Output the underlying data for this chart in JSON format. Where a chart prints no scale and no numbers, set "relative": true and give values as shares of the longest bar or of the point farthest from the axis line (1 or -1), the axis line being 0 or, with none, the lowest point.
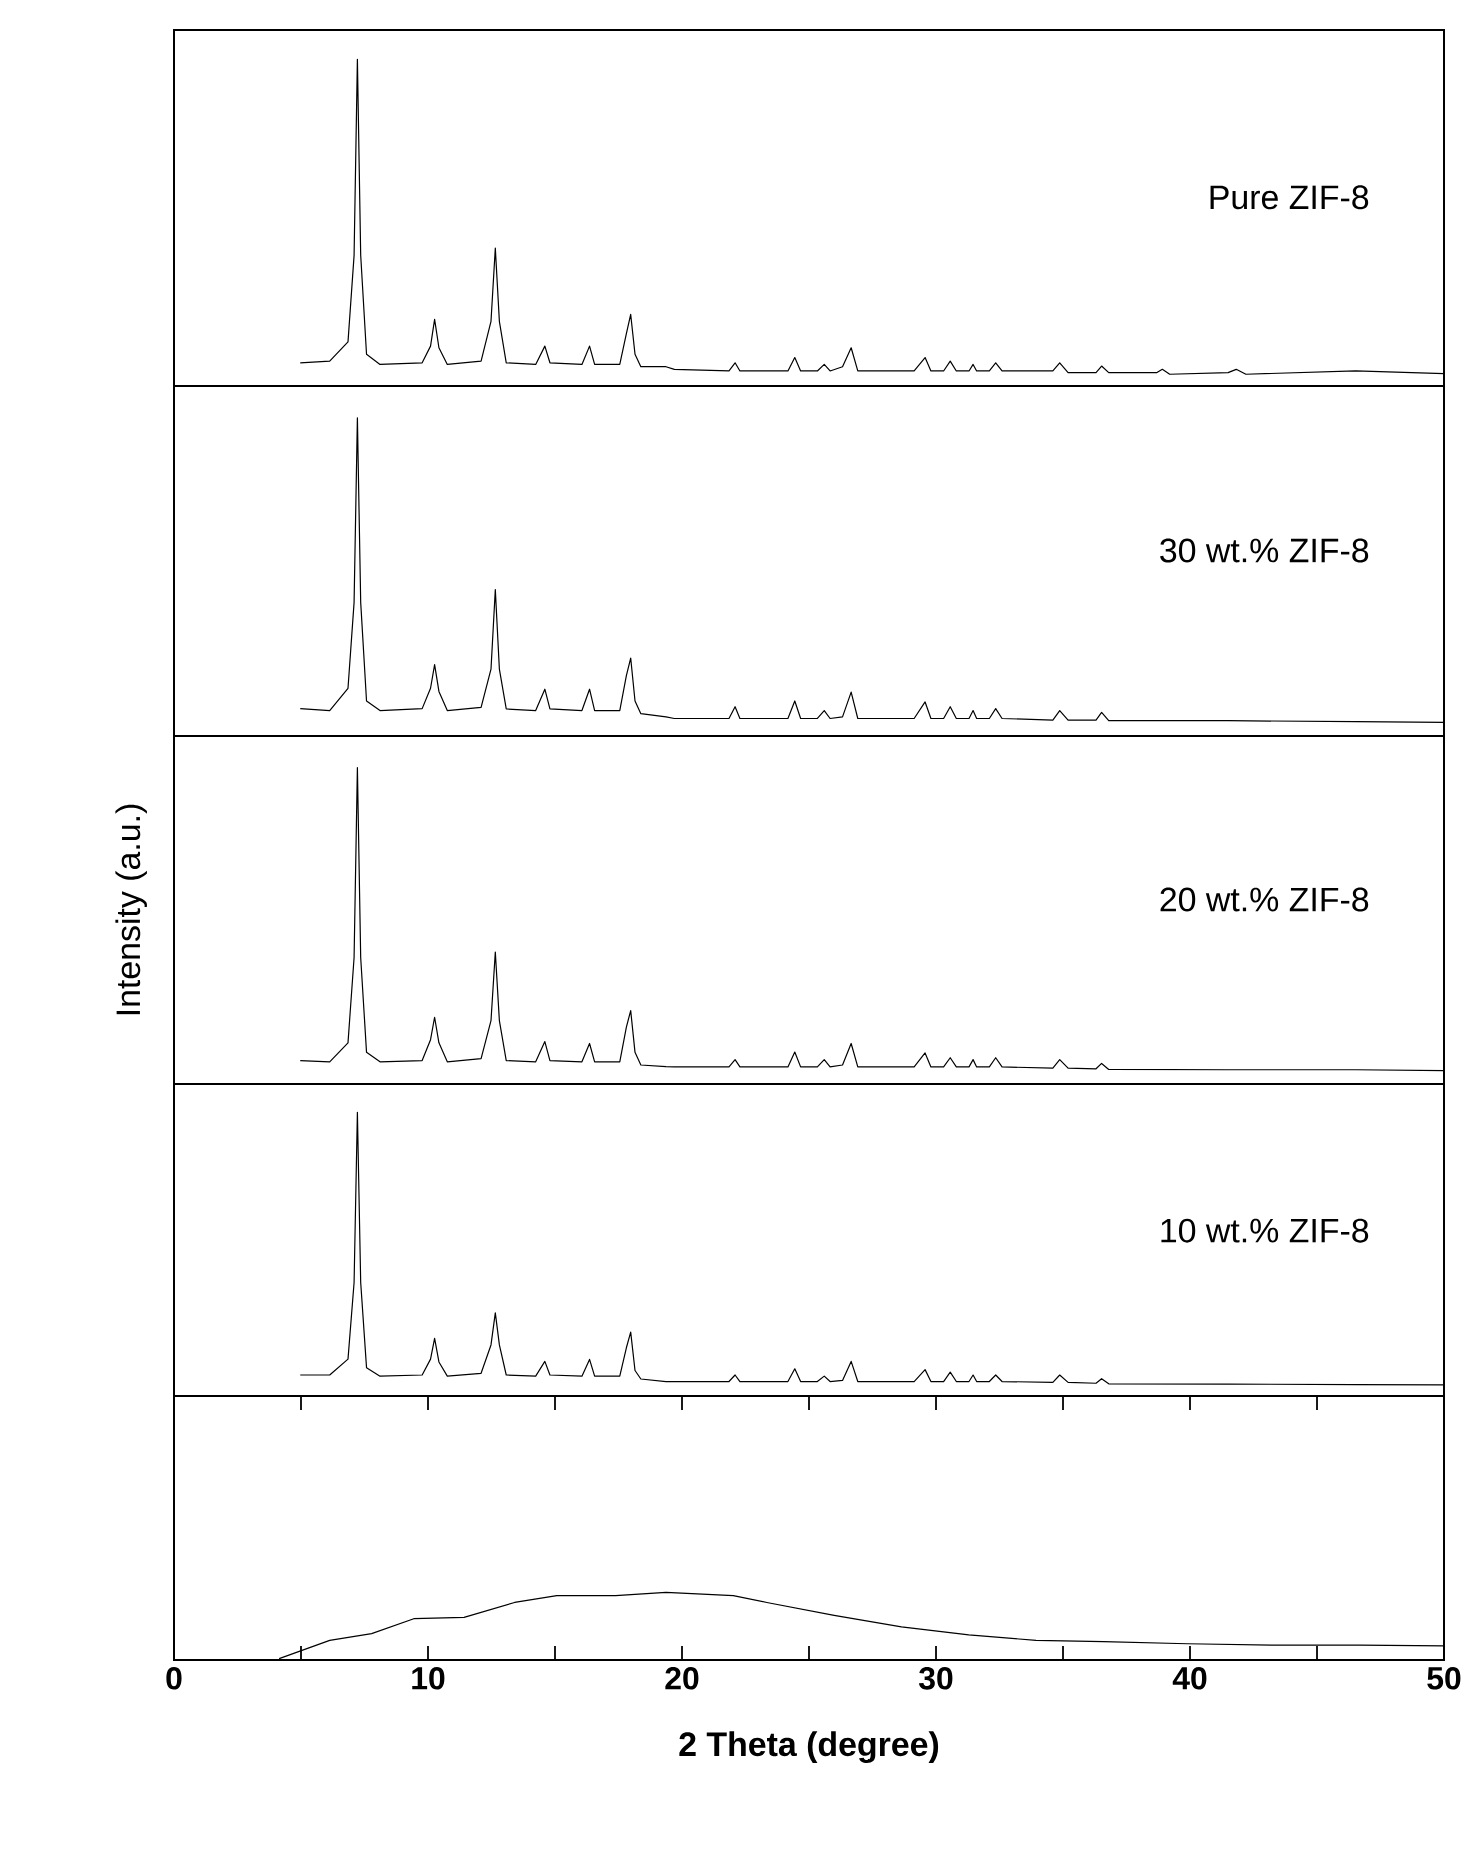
{
  "chart_data": [
    {
      "type": "line",
      "relative": true,
      "xlim": [
        0,
        50
      ],
      "tick_labels": false,
      "series": [
        {
          "name": "Pure ZIF-8",
          "color": "#000000",
          "x": [
            4.97,
            6.13,
            6.85,
            7.09,
            7.22,
            7.35,
            7.58,
            8.11,
            9.77,
            10.1,
            10.26,
            10.43,
            10.76,
            12.09,
            12.48,
            12.65,
            12.81,
            13.08,
            14.24,
            14.6,
            14.8,
            16.06,
            16.36,
            16.56,
            17.55,
            17.81,
            17.98,
            18.15,
            18.38,
            19.37,
            19.7,
            21.85,
            22.09,
            22.28,
            24.17,
            24.44,
            24.67,
            25.33,
            25.6,
            25.83,
            26.32,
            26.66,
            26.92,
            29.14,
            29.57,
            29.8,
            30.3,
            30.56,
            30.8,
            31.3,
            31.46,
            31.6,
            32.1,
            32.35,
            32.6,
            34.6,
            34.87,
            35.2,
            36.3,
            36.52,
            36.8,
            38.7,
            38.91,
            39.2,
            41.5,
            41.82,
            42.2,
            46.52,
            50
          ],
          "values": [
            0.071,
            0.076,
            0.135,
            0.4,
            1.0,
            0.4,
            0.097,
            0.066,
            0.071,
            0.122,
            0.204,
            0.117,
            0.066,
            0.076,
            0.198,
            0.422,
            0.198,
            0.071,
            0.066,
            0.122,
            0.071,
            0.066,
            0.122,
            0.066,
            0.066,
            0.16,
            0.219,
            0.097,
            0.059,
            0.059,
            0.051,
            0.046,
            0.071,
            0.046,
            0.046,
            0.087,
            0.046,
            0.046,
            0.066,
            0.046,
            0.059,
            0.117,
            0.046,
            0.046,
            0.087,
            0.046,
            0.046,
            0.076,
            0.046,
            0.046,
            0.066,
            0.046,
            0.046,
            0.071,
            0.046,
            0.046,
            0.071,
            0.041,
            0.041,
            0.061,
            0.041,
            0.041,
            0.051,
            0.036,
            0.041,
            0.051,
            0.036,
            0.046,
            0.038
          ]
        }
      ]
    },
    {
      "type": "line",
      "relative": true,
      "xlim": [
        0,
        50
      ],
      "tick_labels": false,
      "series": [
        {
          "name": "30 wt.% ZIF-8",
          "color": "#000000",
          "x": [
            4.97,
            6.13,
            6.85,
            7.09,
            7.22,
            7.35,
            7.58,
            8.11,
            9.77,
            10.1,
            10.26,
            10.43,
            10.76,
            12.09,
            12.48,
            12.65,
            12.81,
            13.08,
            14.24,
            14.6,
            14.8,
            16.06,
            16.36,
            16.56,
            17.55,
            17.81,
            17.98,
            18.15,
            18.38,
            19.37,
            19.7,
            21.85,
            22.09,
            22.28,
            24.17,
            24.44,
            24.67,
            25.33,
            25.6,
            25.83,
            26.32,
            26.66,
            26.92,
            29.14,
            29.57,
            29.8,
            30.3,
            30.56,
            30.8,
            31.3,
            31.46,
            31.6,
            32.1,
            32.35,
            32.6,
            34.6,
            34.87,
            35.2,
            36.3,
            36.52,
            36.8,
            41.5,
            46.52,
            50
          ],
          "values": [
            0.086,
            0.08,
            0.15,
            0.42,
            1.0,
            0.42,
            0.11,
            0.08,
            0.086,
            0.15,
            0.224,
            0.14,
            0.08,
            0.09,
            0.21,
            0.46,
            0.21,
            0.085,
            0.08,
            0.147,
            0.085,
            0.08,
            0.147,
            0.08,
            0.08,
            0.19,
            0.245,
            0.11,
            0.07,
            0.06,
            0.055,
            0.055,
            0.092,
            0.055,
            0.055,
            0.11,
            0.055,
            0.055,
            0.08,
            0.055,
            0.06,
            0.138,
            0.055,
            0.055,
            0.107,
            0.055,
            0.055,
            0.092,
            0.055,
            0.055,
            0.08,
            0.055,
            0.055,
            0.086,
            0.055,
            0.05,
            0.08,
            0.05,
            0.05,
            0.074,
            0.048,
            0.048,
            0.045,
            0.043
          ]
        }
      ]
    },
    {
      "type": "line",
      "relative": true,
      "xlim": [
        0,
        50
      ],
      "tick_labels": false,
      "ylabel": "Intensity (a.u.)",
      "series": [
        {
          "name": "20 wt.% ZIF-8",
          "color": "#000000",
          "x": [
            4.97,
            6.13,
            6.85,
            7.09,
            7.22,
            7.35,
            7.58,
            8.11,
            9.77,
            10.1,
            10.26,
            10.43,
            10.76,
            12.09,
            12.48,
            12.65,
            12.81,
            13.08,
            14.24,
            14.6,
            14.8,
            16.06,
            16.36,
            16.56,
            17.55,
            17.81,
            17.98,
            18.15,
            18.38,
            19.37,
            19.7,
            21.85,
            22.09,
            22.28,
            24.17,
            24.44,
            24.67,
            25.33,
            25.6,
            25.83,
            26.32,
            26.66,
            26.92,
            29.14,
            29.57,
            29.8,
            30.3,
            30.56,
            30.8,
            31.3,
            31.46,
            31.6,
            32.1,
            32.35,
            32.6,
            34.6,
            34.87,
            35.2,
            36.3,
            36.52,
            36.8,
            41.5,
            46.52,
            50
          ],
          "values": [
            0.074,
            0.07,
            0.13,
            0.4,
            1.0,
            0.4,
            0.1,
            0.07,
            0.074,
            0.14,
            0.211,
            0.13,
            0.07,
            0.08,
            0.2,
            0.417,
            0.2,
            0.074,
            0.07,
            0.134,
            0.074,
            0.07,
            0.128,
            0.07,
            0.07,
            0.18,
            0.232,
            0.1,
            0.06,
            0.055,
            0.054,
            0.054,
            0.077,
            0.054,
            0.054,
            0.101,
            0.054,
            0.054,
            0.077,
            0.054,
            0.06,
            0.128,
            0.054,
            0.054,
            0.098,
            0.054,
            0.054,
            0.083,
            0.054,
            0.054,
            0.077,
            0.054,
            0.054,
            0.083,
            0.054,
            0.05,
            0.077,
            0.05,
            0.048,
            0.065,
            0.046,
            0.045,
            0.045,
            0.042
          ]
        }
      ]
    },
    {
      "type": "line",
      "relative": true,
      "xlim": [
        0,
        50
      ],
      "tick_labels": false,
      "series": [
        {
          "name": "10 wt.% ZIF-8",
          "color": "#000000",
          "x": [
            4.97,
            6.13,
            6.85,
            7.09,
            7.22,
            7.35,
            7.58,
            8.11,
            9.77,
            10.1,
            10.26,
            10.43,
            10.76,
            12.09,
            12.48,
            12.65,
            12.81,
            13.08,
            14.24,
            14.6,
            14.8,
            16.06,
            16.36,
            16.56,
            17.55,
            17.81,
            17.98,
            18.15,
            18.38,
            19.37,
            19.7,
            21.85,
            22.09,
            22.28,
            24.17,
            24.44,
            24.67,
            25.33,
            25.6,
            25.83,
            26.32,
            26.66,
            26.92,
            29.14,
            29.57,
            29.8,
            30.3,
            30.56,
            30.8,
            31.3,
            31.46,
            31.6,
            32.1,
            32.35,
            32.6,
            34.6,
            34.87,
            35.2,
            36.3,
            36.52,
            36.8,
            41.5,
            46.52,
            50
          ],
          "values": [
            0.074,
            0.074,
            0.13,
            0.4,
            1.0,
            0.4,
            0.1,
            0.07,
            0.074,
            0.13,
            0.203,
            0.12,
            0.07,
            0.08,
            0.18,
            0.293,
            0.18,
            0.074,
            0.07,
            0.122,
            0.074,
            0.07,
            0.129,
            0.07,
            0.07,
            0.17,
            0.225,
            0.09,
            0.06,
            0.051,
            0.051,
            0.051,
            0.074,
            0.051,
            0.051,
            0.096,
            0.051,
            0.051,
            0.07,
            0.051,
            0.055,
            0.122,
            0.051,
            0.051,
            0.093,
            0.051,
            0.051,
            0.084,
            0.051,
            0.051,
            0.074,
            0.051,
            0.051,
            0.074,
            0.051,
            0.048,
            0.074,
            0.048,
            0.045,
            0.061,
            0.043,
            0.042,
            0.04,
            0.039
          ]
        }
      ]
    },
    {
      "type": "line",
      "relative": true,
      "xlim": [
        0,
        50
      ],
      "xlabel": "2 Theta (degree)",
      "tick_labels": "x",
      "xticks": [
        0,
        {
          "value": 5,
          "label": null
        },
        10,
        {
          "value": 15,
          "label": null
        },
        20,
        {
          "value": 25,
          "label": null
        },
        30,
        {
          "value": 35,
          "label": null
        },
        40,
        {
          "value": 45,
          "label": null
        },
        50
      ],
      "series": [
        {
          "color": "#000000",
          "x": [
            4.14,
            6.13,
            7.78,
            9.44,
            11.42,
            13.41,
            15.07,
            17.38,
            19.37,
            22.02,
            23.34,
            25.99,
            28.64,
            31.29,
            33.94,
            36.59,
            39.9,
            43.21,
            46.69,
            50
          ],
          "values": [
            0.02,
            0.29,
            0.39,
            0.61,
            0.63,
            0.85,
            0.95,
            0.95,
            1.0,
            0.95,
            0.85,
            0.66,
            0.49,
            0.37,
            0.29,
            0.27,
            0.24,
            0.22,
            0.22,
            0.21
          ]
        }
      ]
    }
  ]
}
